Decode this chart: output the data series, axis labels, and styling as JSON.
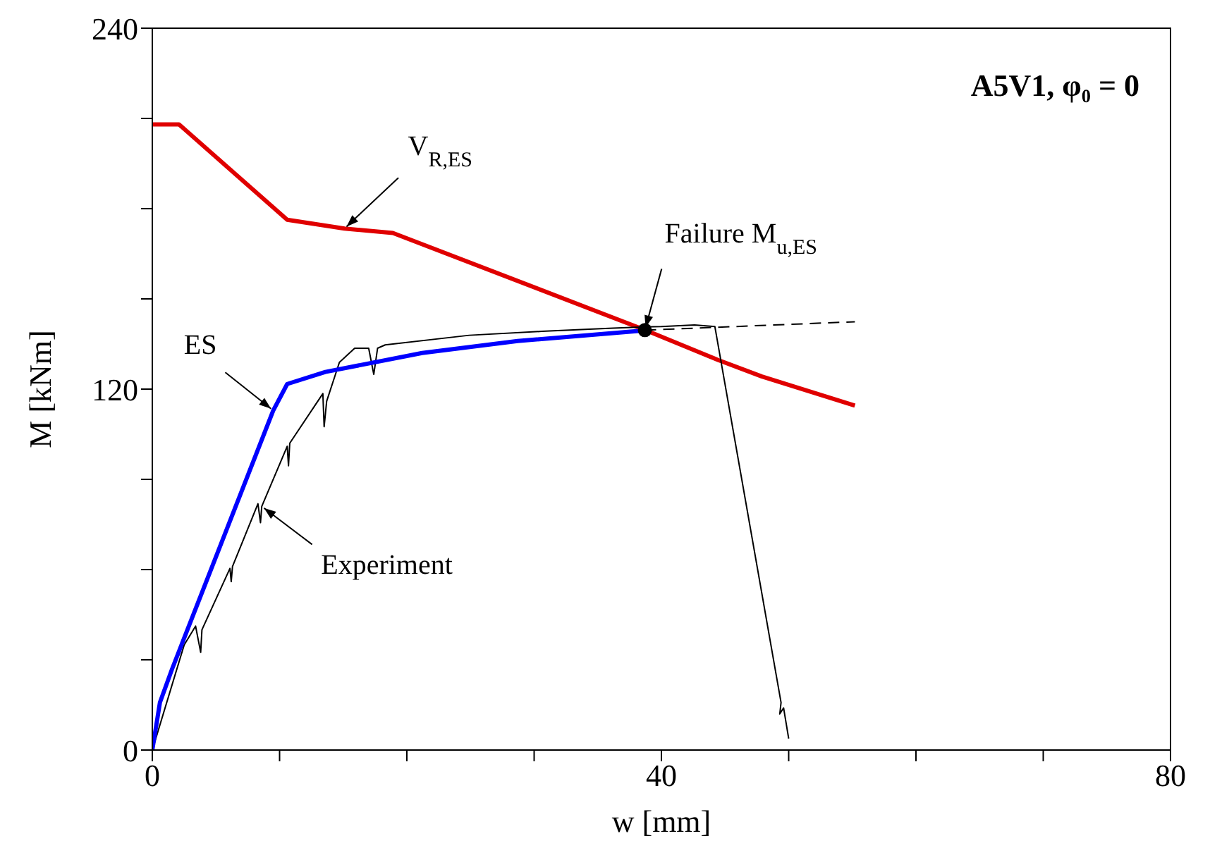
{
  "chart_data": {
    "type": "line",
    "xlabel": "w [mm]",
    "ylabel": "M [kNm]",
    "xlim": [
      0,
      80
    ],
    "ylim": [
      0,
      240
    ],
    "xticks": [
      0,
      {
        "value": 10,
        "label": null
      },
      {
        "value": 20,
        "label": null
      },
      {
        "value": 30,
        "label": null
      },
      40,
      {
        "value": 50,
        "label": null
      },
      {
        "value": 60,
        "label": null
      },
      {
        "value": 70,
        "label": null
      },
      80
    ],
    "yticks": [
      0,
      {
        "value": 30,
        "label": null
      },
      {
        "value": 60,
        "label": null
      },
      {
        "value": 90,
        "label": null
      },
      120,
      {
        "value": 150,
        "label": null
      },
      {
        "value": 180,
        "label": null
      },
      {
        "value": 210,
        "label": null
      },
      240
    ],
    "grid": false,
    "legend": false,
    "marker": "none",
    "series": [
      {
        "type": "line",
        "color": "#e00000",
        "line_style": "solid",
        "x": [
          0,
          2.1,
          10.6,
          15.1,
          18.9,
          38.7,
          44.5,
          47.9,
          55.2
        ],
        "values": [
          208,
          208,
          176.3,
          173.4,
          171.9,
          139.7,
          129.6,
          124.2,
          114.5
        ]
      },
      {
        "type": "line",
        "color": "#000000",
        "line_style": "solid",
        "x": [
          0,
          2.5,
          3.4,
          3.8,
          3.9,
          6.1,
          6.2,
          6.3,
          8.3,
          8.5,
          8.6,
          10.6,
          10.7,
          10.8,
          13.4,
          13.5,
          13.7,
          14.7,
          15.9,
          17,
          17.4,
          17.7,
          18.3,
          24.9,
          30.6,
          36.2,
          38.7,
          40,
          42.6,
          44.2,
          49.4,
          49.3,
          49.6,
          50
        ],
        "values": [
          0,
          34.9,
          41.2,
          32.5,
          40,
          60.4,
          56,
          61,
          81.9,
          75.6,
          81,
          101,
          94.5,
          102,
          118.5,
          107.5,
          116,
          128.9,
          133.6,
          133.6,
          124.9,
          133.6,
          134.7,
          137.9,
          139.2,
          140.3,
          140.7,
          140.8,
          141.3,
          140.8,
          15.8,
          12,
          14,
          3.8
        ]
      },
      {
        "type": "line",
        "color": "#0000ff",
        "line_style": "solid",
        "x": [
          0,
          0.6,
          1.55,
          9.5,
          10.6,
          13.6,
          21.2,
          28.7,
          38.7
        ],
        "values": [
          0,
          15.8,
          26.9,
          112.9,
          121.7,
          125.7,
          132,
          136,
          139.5
        ]
      },
      {
        "type": "line",
        "color": "#000000",
        "line_style": "dashed",
        "x": [
          38.7,
          55.2
        ],
        "values": [
          139.6,
          142.4
        ]
      },
      {
        "type": "scatter",
        "color": "#000000",
        "marker": "circle",
        "x": [
          38.7
        ],
        "values": [
          139.6
        ]
      }
    ],
    "annotations": [
      {
        "text": "V$_{R,ES}$",
        "x": 15.1,
        "y": 173.4
      },
      {
        "text": "ES",
        "x": 9.5,
        "y": 112.9
      },
      {
        "text": "Experiment",
        "x": 8.6,
        "y": 81
      },
      {
        "text": "Failure M$_{u,ES}$",
        "x": 38.7,
        "y": 139.6
      },
      "A5V1, φ₀ = 0"
    ]
  }
}
